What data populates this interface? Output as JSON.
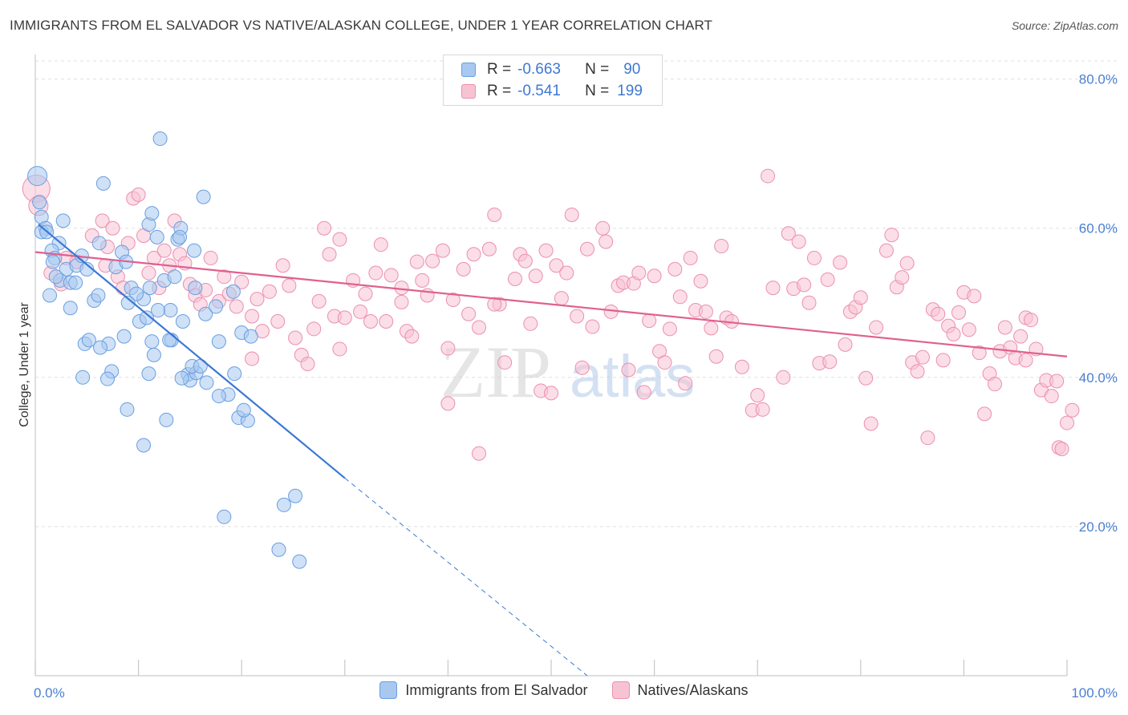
{
  "header": {
    "title": "IMMIGRANTS FROM EL SALVADOR VS NATIVE/ALASKAN COLLEGE, UNDER 1 YEAR CORRELATION CHART",
    "source": "Source: ZipAtlas.com"
  },
  "legend": {
    "r_label": "R =",
    "n_label": "N =",
    "rows": [
      {
        "r": "-0.663",
        "n": "90"
      },
      {
        "r": "-0.541",
        "n": "199"
      }
    ]
  },
  "watermark": {
    "zip": "ZIP",
    "atlas": "atlas"
  },
  "colors": {
    "blue_fill": "#a8c8f0",
    "blue_stroke": "#6a9ee0",
    "blue_line": "#3a78d4",
    "pink_fill": "#f7c3d3",
    "pink_stroke": "#ec8fae",
    "pink_line": "#e0608f",
    "tick_text": "#4a7fd0",
    "grid": "#e0e0e0"
  },
  "chart_data": {
    "type": "scatter",
    "xlabel": "",
    "ylabel": "College, Under 1 year",
    "xlim": [
      0,
      100
    ],
    "ylim": [
      0,
      82
    ],
    "x_tick_labels": [
      {
        "value": 0,
        "label": "0.0%"
      },
      {
        "value": 100,
        "label": "100.0%"
      }
    ],
    "y_tick_labels": [
      {
        "value": 20,
        "label": "20.0%"
      },
      {
        "value": 40,
        "label": "40.0%"
      },
      {
        "value": 60,
        "label": "60.0%"
      },
      {
        "value": 80,
        "label": "80.0%"
      }
    ],
    "series": [
      {
        "name": "Immigrants from El Salvador",
        "color": "blue",
        "trend": {
          "x0": 0.3,
          "y0": 60.5,
          "x1": 30,
          "y1": 26.5,
          "dash_to_x": 53.5,
          "dash_to_y": 0
        },
        "points": [
          [
            0.2,
            67
          ],
          [
            0.4,
            63.5
          ],
          [
            0.6,
            61.5
          ],
          [
            1.0,
            60
          ],
          [
            0.6,
            59.5
          ],
          [
            2.7,
            61
          ],
          [
            1.1,
            59.5
          ],
          [
            2.3,
            58
          ],
          [
            1.6,
            57
          ],
          [
            1.9,
            56
          ],
          [
            1.7,
            55.5
          ],
          [
            3.0,
            54.5
          ],
          [
            2.4,
            53
          ],
          [
            3.4,
            52.7
          ],
          [
            3.9,
            52.7
          ],
          [
            4.0,
            55
          ],
          [
            5.0,
            54.5
          ],
          [
            6.2,
            58
          ],
          [
            6.6,
            66
          ],
          [
            7.8,
            54.8
          ],
          [
            8.4,
            56.8
          ],
          [
            8.8,
            55.5
          ],
          [
            9.3,
            52
          ],
          [
            10.5,
            50.5
          ],
          [
            9.8,
            51.2
          ],
          [
            10.1,
            47.5
          ],
          [
            10.8,
            48
          ],
          [
            11.1,
            52
          ],
          [
            11.0,
            60.5
          ],
          [
            11.3,
            62
          ],
          [
            12.1,
            72
          ],
          [
            11.8,
            58.8
          ],
          [
            13.8,
            58.5
          ],
          [
            14.1,
            60
          ],
          [
            14.0,
            58.8
          ],
          [
            15.4,
            57
          ],
          [
            16.3,
            64.2
          ],
          [
            16.5,
            48.5
          ],
          [
            15.5,
            52
          ],
          [
            14.3,
            47.5
          ],
          [
            13.1,
            49
          ],
          [
            13.2,
            45
          ],
          [
            13.0,
            45
          ],
          [
            11.3,
            44.8
          ],
          [
            8.6,
            45.5
          ],
          [
            7.1,
            44.5
          ],
          [
            6.3,
            44
          ],
          [
            4.8,
            44.5
          ],
          [
            5.2,
            45
          ],
          [
            4.6,
            40
          ],
          [
            3.4,
            49.3
          ],
          [
            5.7,
            50.3
          ],
          [
            9.0,
            50
          ],
          [
            11.9,
            49
          ],
          [
            17.5,
            49.5
          ],
          [
            17.8,
            44.8
          ],
          [
            19.2,
            51.5
          ],
          [
            20.0,
            46
          ],
          [
            20.9,
            45.5
          ],
          [
            18.7,
            37.7
          ],
          [
            19.3,
            40.5
          ],
          [
            17.8,
            37.5
          ],
          [
            16.6,
            39.3
          ],
          [
            14.8,
            40.4
          ],
          [
            15.0,
            39.6
          ],
          [
            15.6,
            40.6
          ],
          [
            15.2,
            41.5
          ],
          [
            16.0,
            41.5
          ],
          [
            14.2,
            39.9
          ],
          [
            11.0,
            40.5
          ],
          [
            7.4,
            40.8
          ],
          [
            7.0,
            39.8
          ],
          [
            8.9,
            35.7
          ],
          [
            11.5,
            43
          ],
          [
            12.7,
            34.3
          ],
          [
            10.5,
            30.9
          ],
          [
            19.7,
            34.6
          ],
          [
            20.6,
            34.2
          ],
          [
            20.2,
            35.6
          ],
          [
            18.3,
            21.3
          ],
          [
            24.1,
            22.9
          ],
          [
            25.2,
            24.1
          ],
          [
            23.6,
            16.9
          ],
          [
            25.6,
            15.3
          ],
          [
            1.4,
            51
          ],
          [
            2.0,
            53.5
          ],
          [
            4.5,
            56.3
          ],
          [
            6.1,
            51
          ],
          [
            12.5,
            53
          ],
          [
            13.5,
            53.5
          ]
        ]
      },
      {
        "name": "Natives/Alaskans",
        "color": "pink",
        "trend": {
          "x0": 0,
          "y0": 56.8,
          "x1": 100,
          "y1": 42.8
        },
        "points": [
          [
            0.1,
            65.3
          ],
          [
            0.3,
            63
          ],
          [
            1.5,
            54
          ],
          [
            2.5,
            52.5
          ],
          [
            3.0,
            56
          ],
          [
            4.0,
            55.5
          ],
          [
            5.5,
            59
          ],
          [
            6.5,
            61
          ],
          [
            6.8,
            55
          ],
          [
            7.0,
            57.5
          ],
          [
            7.5,
            60
          ],
          [
            8.0,
            53.5
          ],
          [
            8.5,
            52
          ],
          [
            9.0,
            58
          ],
          [
            9.5,
            64
          ],
          [
            10.0,
            64.5
          ],
          [
            10.5,
            59
          ],
          [
            11.0,
            54
          ],
          [
            11.5,
            56
          ],
          [
            12.0,
            52
          ],
          [
            12.5,
            57
          ],
          [
            13.0,
            55
          ],
          [
            13.5,
            61
          ],
          [
            14.0,
            56.5
          ],
          [
            14.5,
            55.3
          ],
          [
            15.0,
            52.5
          ],
          [
            15.5,
            51
          ],
          [
            16.0,
            49.8
          ],
          [
            16.5,
            51.7
          ],
          [
            17.0,
            56
          ],
          [
            17.8,
            50.2
          ],
          [
            18.3,
            53.5
          ],
          [
            18.8,
            51.2
          ],
          [
            19.5,
            49.5
          ],
          [
            20.0,
            52.8
          ],
          [
            21.0,
            48.2
          ],
          [
            21.5,
            50.5
          ],
          [
            22.0,
            46.2
          ],
          [
            22.7,
            51.5
          ],
          [
            23.5,
            47.5
          ],
          [
            24.0,
            55
          ],
          [
            24.6,
            52.3
          ],
          [
            25.2,
            45.3
          ],
          [
            25.8,
            43
          ],
          [
            26.4,
            41.8
          ],
          [
            27.0,
            46.5
          ],
          [
            27.5,
            50.2
          ],
          [
            28.0,
            60
          ],
          [
            28.5,
            56.5
          ],
          [
            29.0,
            48.2
          ],
          [
            29.5,
            58.5
          ],
          [
            30.0,
            48
          ],
          [
            30.8,
            53
          ],
          [
            31.5,
            48.8
          ],
          [
            32.0,
            51.2
          ],
          [
            32.5,
            47.5
          ],
          [
            33.0,
            54
          ],
          [
            33.5,
            57.8
          ],
          [
            34.0,
            47.5
          ],
          [
            34.5,
            53.7
          ],
          [
            35.5,
            50.1
          ],
          [
            35.5,
            52
          ],
          [
            36.0,
            46.2
          ],
          [
            36.5,
            45.5
          ],
          [
            37.0,
            55.5
          ],
          [
            37.5,
            53
          ],
          [
            38.0,
            51
          ],
          [
            38.5,
            55.6
          ],
          [
            39.5,
            57
          ],
          [
            40.0,
            36.5
          ],
          [
            40.0,
            43.9
          ],
          [
            40.5,
            50.4
          ],
          [
            41.5,
            54.5
          ],
          [
            42.0,
            48.5
          ],
          [
            42.5,
            56.5
          ],
          [
            43.0,
            46.7
          ],
          [
            44.0,
            57.2
          ],
          [
            44.5,
            61.8
          ],
          [
            45.0,
            49.8
          ],
          [
            45.5,
            42
          ],
          [
            46.5,
            53.2
          ],
          [
            47.0,
            56.5
          ],
          [
            47.5,
            55.6
          ],
          [
            48.0,
            47.2
          ],
          [
            48.5,
            53.6
          ],
          [
            49.0,
            38.2
          ],
          [
            49.5,
            57
          ],
          [
            50.0,
            37.9
          ],
          [
            50.5,
            55
          ],
          [
            51.0,
            50.6
          ],
          [
            51.5,
            54
          ],
          [
            52.0,
            61.8
          ],
          [
            52.5,
            48.2
          ],
          [
            53.0,
            41.3
          ],
          [
            53.5,
            57.2
          ],
          [
            54.0,
            46.8
          ],
          [
            55.0,
            60
          ],
          [
            55.3,
            58.2
          ],
          [
            55.8,
            48.8
          ],
          [
            56.5,
            52.3
          ],
          [
            57.0,
            52.7
          ],
          [
            57.5,
            41
          ],
          [
            58.0,
            52.6
          ],
          [
            58.5,
            54
          ],
          [
            59.0,
            38
          ],
          [
            59.5,
            47.6
          ],
          [
            60.0,
            53.6
          ],
          [
            60.5,
            43.5
          ],
          [
            61.0,
            42
          ],
          [
            61.5,
            46.5
          ],
          [
            62.0,
            54.5
          ],
          [
            62.5,
            50.8
          ],
          [
            63.0,
            39.2
          ],
          [
            63.5,
            56
          ],
          [
            64.0,
            49
          ],
          [
            64.5,
            52.9
          ],
          [
            65.0,
            48.8
          ],
          [
            65.5,
            46.6
          ],
          [
            66.0,
            42.8
          ],
          [
            66.5,
            57.6
          ],
          [
            67.0,
            48
          ],
          [
            67.5,
            47.5
          ],
          [
            68.5,
            41.4
          ],
          [
            69.5,
            35.6
          ],
          [
            70.0,
            37.6
          ],
          [
            70.5,
            35.7
          ],
          [
            71.0,
            67
          ],
          [
            71.5,
            52
          ],
          [
            72.5,
            40
          ],
          [
            73.0,
            59.3
          ],
          [
            73.5,
            51.9
          ],
          [
            74.0,
            58.2
          ],
          [
            74.5,
            52.4
          ],
          [
            75.0,
            50
          ],
          [
            75.5,
            56
          ],
          [
            76.0,
            41.9
          ],
          [
            76.8,
            53.1
          ],
          [
            77.0,
            42.1
          ],
          [
            78.0,
            55.4
          ],
          [
            78.5,
            44.4
          ],
          [
            79.0,
            48.8
          ],
          [
            79.5,
            49.4
          ],
          [
            80.0,
            50.7
          ],
          [
            80.5,
            39.9
          ],
          [
            81.0,
            33.8
          ],
          [
            81.5,
            46.7
          ],
          [
            82.5,
            57
          ],
          [
            83.0,
            59.1
          ],
          [
            83.5,
            52.1
          ],
          [
            84.0,
            53.4
          ],
          [
            84.5,
            55.3
          ],
          [
            85.0,
            42
          ],
          [
            85.5,
            40.8
          ],
          [
            86.0,
            42.7
          ],
          [
            86.5,
            31.9
          ],
          [
            87.0,
            49.1
          ],
          [
            87.5,
            48.5
          ],
          [
            88.0,
            42.3
          ],
          [
            88.5,
            46.9
          ],
          [
            89.0,
            45.8
          ],
          [
            89.5,
            48.7
          ],
          [
            90.0,
            51.4
          ],
          [
            90.5,
            46.4
          ],
          [
            91.0,
            50.9
          ],
          [
            91.5,
            43.3
          ],
          [
            92.0,
            35.1
          ],
          [
            92.5,
            40.5
          ],
          [
            93.0,
            39.1
          ],
          [
            93.5,
            43.5
          ],
          [
            94.0,
            46.7
          ],
          [
            94.5,
            44
          ],
          [
            95.0,
            42.6
          ],
          [
            95.5,
            45.5
          ],
          [
            96.0,
            48
          ],
          [
            96.5,
            47.7
          ],
          [
            97.0,
            43.8
          ],
          [
            97.5,
            38.3
          ],
          [
            98.0,
            39.6
          ],
          [
            98.5,
            37.5
          ],
          [
            99.0,
            39.5
          ],
          [
            99.2,
            30.6
          ],
          [
            99.5,
            30.4
          ],
          [
            100.0,
            33.9
          ],
          [
            100.5,
            35.6
          ],
          [
            96.0,
            42.3
          ],
          [
            43.0,
            29.8
          ],
          [
            29.5,
            43.8
          ],
          [
            21.0,
            42.5
          ],
          [
            44.5,
            49.8
          ]
        ]
      }
    ]
  },
  "bottom_legend": {
    "items": [
      "Immigrants from El Salvador",
      "Natives/Alaskans"
    ]
  }
}
